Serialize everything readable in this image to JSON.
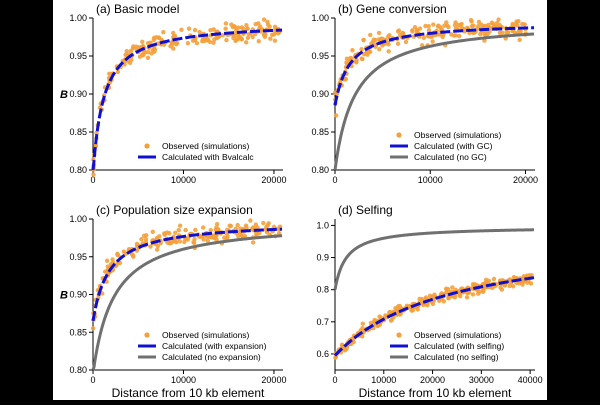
{
  "chart_data": [
    {
      "type": "scatter",
      "title": "(a) Basic model",
      "xlabel": "",
      "ylabel": "B",
      "xlim": [
        0,
        21000
      ],
      "ylim": [
        0.8,
        1.0
      ],
      "xticks": [
        0,
        10000,
        20000
      ],
      "yticks": [
        0.8,
        0.85,
        0.9,
        0.95,
        1.0
      ],
      "ytick_labels": [
        "0.80",
        "0.85",
        "0.90",
        "0.95",
        "1.00"
      ],
      "legend_position": "bottom-right",
      "series": [
        {
          "name": "Observed (simulations)",
          "kind": "points",
          "color": "#F5A03A",
          "b0": 0.795,
          "bmax": 0.995,
          "k": 1200,
          "noise": 0.006,
          "n": 220
        },
        {
          "name": "Calculated with Bvalcalc",
          "kind": "line",
          "style": "dashed",
          "color": "#1010D0",
          "b0": 0.795,
          "bmax": 0.995,
          "k": 1200
        }
      ]
    },
    {
      "type": "scatter",
      "title": "(b) Gene conversion",
      "xlabel": "",
      "ylabel": "",
      "xlim": [
        0,
        21000
      ],
      "ylim": [
        0.8,
        1.0
      ],
      "xticks": [
        0,
        10000,
        20000
      ],
      "yticks": [
        0.8,
        0.85,
        0.9,
        0.95,
        1.0
      ],
      "ytick_labels": [
        "0.80",
        "0.85",
        "0.90",
        "0.95",
        "1.00"
      ],
      "legend_position": "bottom-right",
      "series": [
        {
          "name": "Observed (simulations)",
          "kind": "points",
          "color": "#F5A03A",
          "b0": 0.885,
          "bmax": 0.995,
          "k": 1600,
          "noise": 0.006,
          "n": 220
        },
        {
          "name": "Calculated (with GC)",
          "kind": "line",
          "style": "dashed",
          "color": "#1010D0",
          "b0": 0.885,
          "bmax": 0.995,
          "k": 1600
        },
        {
          "name": "Calculated (no GC)",
          "kind": "line",
          "style": "solid",
          "color": "#707070",
          "b0": 0.8,
          "bmax": 0.997,
          "k": 2100
        }
      ]
    },
    {
      "type": "scatter",
      "title": "(c) Population size expansion",
      "xlabel": "Distance from 10 kb element",
      "ylabel": "B",
      "xlim": [
        0,
        21000
      ],
      "ylim": [
        0.8,
        1.0
      ],
      "xticks": [
        0,
        10000,
        20000
      ],
      "yticks": [
        0.8,
        0.85,
        0.9,
        0.95,
        1.0
      ],
      "ytick_labels": [
        "0.80",
        "0.85",
        "0.90",
        "0.95",
        "1.00"
      ],
      "legend_position": "bottom-right",
      "series": [
        {
          "name": "Observed (simulations)",
          "kind": "points",
          "color": "#F5A03A",
          "b0": 0.865,
          "bmax": 0.997,
          "k": 1800,
          "noise": 0.006,
          "n": 220
        },
        {
          "name": "Calculated (with expansion)",
          "kind": "line",
          "style": "dashed",
          "color": "#1010D0",
          "b0": 0.865,
          "bmax": 0.997,
          "k": 1800
        },
        {
          "name": "Calculated (no expansion)",
          "kind": "line",
          "style": "solid",
          "color": "#707070",
          "b0": 0.795,
          "bmax": 0.998,
          "k": 2300
        }
      ]
    },
    {
      "type": "scatter",
      "title": "(d) Selfing",
      "xlabel": "Distance from 10 kb element",
      "ylabel": "",
      "xlim": [
        0,
        41000
      ],
      "ylim": [
        0.55,
        1.02
      ],
      "xticks": [
        0,
        10000,
        20000,
        30000,
        40000
      ],
      "yticks": [
        0.6,
        0.7,
        0.8,
        0.9,
        1.0
      ],
      "ytick_labels": [
        "0.6",
        "0.7",
        "0.8",
        "0.9",
        "1.0"
      ],
      "legend_position": "bottom-right",
      "series": [
        {
          "name": "Observed (simulations)",
          "kind": "points",
          "color": "#F5A03A",
          "b0": 0.595,
          "bmax": 0.98,
          "k": 24000,
          "noise": 0.008,
          "n": 320
        },
        {
          "name": "Calculated (with selfing)",
          "kind": "line",
          "style": "dashed",
          "color": "#1010D0",
          "b0": 0.595,
          "bmax": 0.98,
          "k": 24000
        },
        {
          "name": "Calculated (no selfing)",
          "kind": "line",
          "style": "solid",
          "color": "#707070",
          "b0": 0.8,
          "bmax": 0.997,
          "k": 2300
        }
      ]
    }
  ]
}
